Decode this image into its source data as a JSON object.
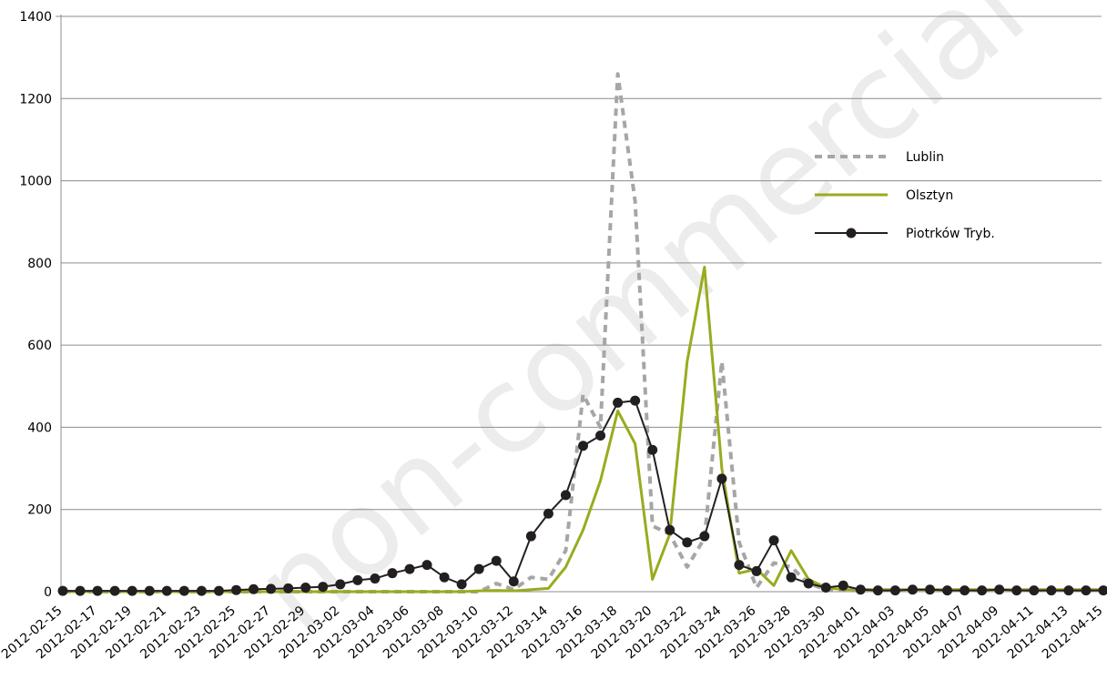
{
  "chart_data": {
    "type": "line",
    "ylim": [
      0,
      1400
    ],
    "yticks": [
      0,
      200,
      400,
      600,
      800,
      1000,
      1200,
      1400
    ],
    "grid": "horizontal",
    "legend_position": "right",
    "watermark": "non-commercial use only",
    "x": [
      "2012-02-15",
      "2012-02-16",
      "2012-02-17",
      "2012-02-18",
      "2012-02-19",
      "2012-02-20",
      "2012-02-21",
      "2012-02-22",
      "2012-02-23",
      "2012-02-24",
      "2012-02-25",
      "2012-02-26",
      "2012-02-27",
      "2012-02-28",
      "2012-02-29",
      "2012-03-01",
      "2012-03-02",
      "2012-03-03",
      "2012-03-04",
      "2012-03-05",
      "2012-03-06",
      "2012-03-07",
      "2012-03-08",
      "2012-03-09",
      "2012-03-10",
      "2012-03-11",
      "2012-03-12",
      "2012-03-13",
      "2012-03-14",
      "2012-03-15",
      "2012-03-16",
      "2012-03-17",
      "2012-03-18",
      "2012-03-19",
      "2012-03-20",
      "2012-03-21",
      "2012-03-22",
      "2012-03-23",
      "2012-03-24",
      "2012-03-25",
      "2012-03-26",
      "2012-03-27",
      "2012-03-28",
      "2012-03-29",
      "2012-03-30",
      "2012-03-31",
      "2012-04-01",
      "2012-04-02",
      "2012-04-03",
      "2012-04-04",
      "2012-04-05",
      "2012-04-06",
      "2012-04-07",
      "2012-04-08",
      "2012-04-09",
      "2012-04-10",
      "2012-04-11",
      "2012-04-12",
      "2012-04-13",
      "2012-04-14",
      "2012-04-15"
    ],
    "x_tick_labels": [
      "2012-02-15",
      "2012-02-17",
      "2012-02-19",
      "2012-02-21",
      "2012-02-23",
      "2012-02-25",
      "2012-02-27",
      "2012-02-29",
      "2012-03-02",
      "2012-03-04",
      "2012-03-06",
      "2012-03-08",
      "2012-03-10",
      "2012-03-12",
      "2012-03-14",
      "2012-03-16",
      "2012-03-18",
      "2012-03-20",
      "2012-03-22",
      "2012-03-24",
      "2012-03-26",
      "2012-03-28",
      "2012-03-30",
      "2012-04-01",
      "2012-04-03",
      "2012-04-05",
      "2012-04-07",
      "2012-04-09",
      "2012-04-11",
      "2012-04-13",
      "2012-04-15"
    ],
    "series": [
      {
        "name": "Lublin",
        "color": "#a6a6a6",
        "style": "dotted",
        "marker": "none",
        "values": [
          0,
          0,
          0,
          0,
          0,
          0,
          0,
          0,
          0,
          0,
          0,
          0,
          0,
          0,
          0,
          0,
          0,
          0,
          0,
          0,
          0,
          0,
          0,
          0,
          0,
          20,
          5,
          35,
          30,
          100,
          480,
          400,
          1260,
          950,
          160,
          140,
          60,
          130,
          560,
          120,
          10,
          70,
          60,
          20,
          5,
          5,
          5,
          3,
          3,
          3,
          3,
          3,
          3,
          3,
          3,
          3,
          3,
          3,
          3,
          3,
          3
        ]
      },
      {
        "name": "Olsztyn",
        "color": "#9aab1e",
        "style": "solid",
        "marker": "none",
        "values": [
          0,
          0,
          0,
          0,
          0,
          0,
          0,
          0,
          0,
          0,
          0,
          0,
          0,
          0,
          0,
          0,
          0,
          0,
          0,
          0,
          0,
          0,
          0,
          0,
          2,
          3,
          2,
          5,
          8,
          60,
          150,
          270,
          440,
          360,
          30,
          140,
          560,
          790,
          300,
          45,
          55,
          15,
          100,
          30,
          10,
          5,
          5,
          5,
          5,
          5,
          5,
          5,
          5,
          5,
          5,
          5,
          5,
          5,
          5,
          5,
          5
        ]
      },
      {
        "name": "Piotrków Tryb.",
        "color": "#231f20",
        "style": "solid",
        "marker": "circle",
        "values": [
          2,
          2,
          2,
          2,
          2,
          2,
          2,
          2,
          2,
          2,
          4,
          6,
          7,
          8,
          10,
          12,
          18,
          28,
          32,
          45,
          55,
          65,
          35,
          18,
          55,
          75,
          25,
          135,
          190,
          235,
          355,
          380,
          460,
          465,
          345,
          150,
          120,
          135,
          275,
          65,
          50,
          125,
          35,
          20,
          10,
          15,
          5,
          3,
          3,
          5,
          5,
          3,
          3,
          3,
          5,
          3,
          3,
          3,
          3,
          3,
          3
        ]
      }
    ]
  }
}
